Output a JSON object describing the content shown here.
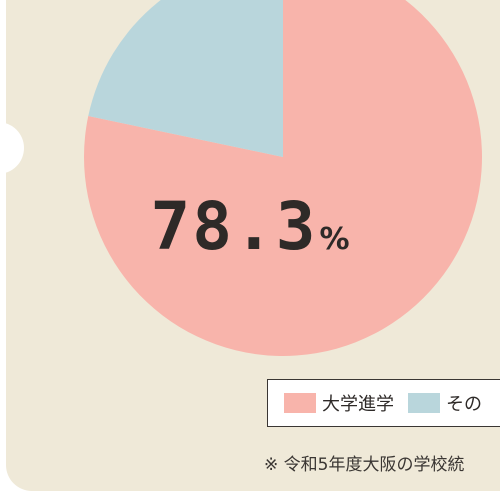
{
  "chart_data": {
    "type": "pie",
    "slices": [
      {
        "label": "大学進学",
        "value": 78.3,
        "color": "#f8b4ab"
      },
      {
        "label": "その",
        "value": 21.7,
        "color": "#b9d6dc"
      }
    ],
    "center_value": "78.3",
    "center_unit": "%"
  },
  "legend": {
    "items": [
      {
        "label": "大学進学",
        "color": "#f8b4ab"
      },
      {
        "label": "その",
        "color": "#b9d6dc"
      }
    ]
  },
  "footnote": "※ 令和5年度大阪の学校統"
}
